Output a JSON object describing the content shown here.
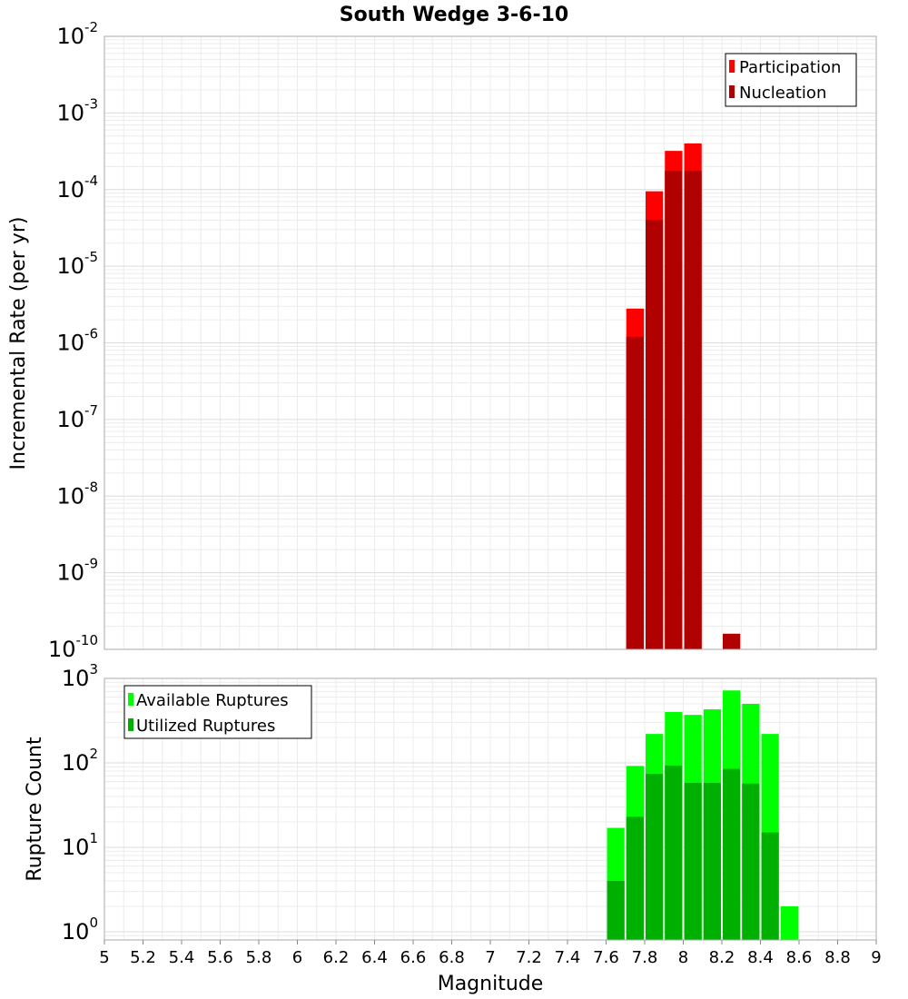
{
  "chart_data": [
    {
      "type": "bar",
      "title": "South Wedge 3-6-10",
      "xlabel": "Magnitude",
      "ylabel": "Incremental Rate (per yr)",
      "yscale": "log",
      "ylim": [
        1e-10,
        0.01
      ],
      "xlim": [
        5,
        9
      ],
      "ytick_exponents": [
        -2,
        -3,
        -4,
        -5,
        -6,
        -7,
        -8,
        -9,
        -10
      ],
      "ytick_base": "10",
      "grid": true,
      "legend_position": "top-right",
      "bar_width": 0.1,
      "series": [
        {
          "name": "Participation",
          "color": "#ff0000",
          "x": [
            7.75,
            7.85,
            7.95,
            8.05
          ],
          "values": [
            2.8e-06,
            9.5e-05,
            0.00032,
            0.0004
          ]
        },
        {
          "name": "Nucleation",
          "color": "#b00000",
          "x": [
            7.75,
            7.85,
            7.95,
            8.05,
            8.25
          ],
          "values": [
            1.2e-06,
            4e-05,
            0.000175,
            0.000175,
            1.6e-10
          ]
        }
      ]
    },
    {
      "type": "bar",
      "xlabel": "Magnitude",
      "ylabel": "Rupture Count",
      "yscale": "log",
      "ylim": [
        0.8,
        1000
      ],
      "xlim": [
        5,
        9
      ],
      "ytick_exponents": [
        3,
        2,
        1,
        0
      ],
      "ytick_base": "10",
      "xticks": [
        "5",
        "5.2",
        "5.4",
        "5.6",
        "5.8",
        "6",
        "6.2",
        "6.4",
        "6.6",
        "6.8",
        "7",
        "7.2",
        "7.4",
        "7.6",
        "7.8",
        "8",
        "8.2",
        "8.4",
        "8.6",
        "8.8",
        "9"
      ],
      "grid": true,
      "legend_position": "top-left",
      "bar_width": 0.1,
      "series": [
        {
          "name": "Available Ruptures",
          "color": "#00ff00",
          "x": [
            7.65,
            7.75,
            7.85,
            7.95,
            8.05,
            8.15,
            8.25,
            8.35,
            8.45,
            8.55
          ],
          "values": [
            17,
            92,
            220,
            400,
            370,
            430,
            720,
            500,
            220,
            2
          ]
        },
        {
          "name": "Utilized Ruptures",
          "color": "#00b000",
          "x": [
            7.65,
            7.75,
            7.85,
            7.95,
            8.05,
            8.15,
            8.25,
            8.35,
            8.45
          ],
          "values": [
            4,
            23,
            74,
            93,
            58,
            58,
            85,
            57,
            15
          ]
        }
      ]
    }
  ]
}
